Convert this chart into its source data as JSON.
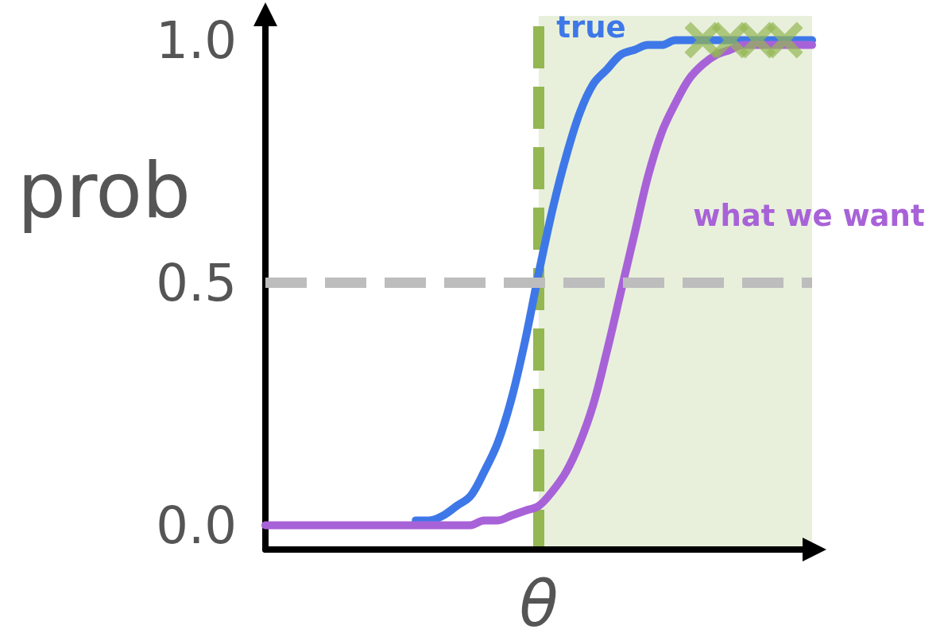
{
  "chart_data": {
    "type": "line",
    "xlabel": "θ",
    "ylabel": "prob",
    "categories": [
      null,
      null,
      null,
      null,
      null,
      null,
      null,
      null,
      null,
      null,
      null,
      null,
      null,
      null,
      null,
      null,
      null,
      null,
      null,
      null,
      null,
      null,
      null,
      null,
      null,
      null,
      null,
      null,
      null,
      null,
      null,
      null,
      null,
      null,
      null,
      null,
      null,
      null,
      null,
      null,
      null
    ],
    "series": [
      {
        "name": "true",
        "color": "#3e78e8",
        "values": [
          null,
          null,
          null,
          null,
          null,
          null,
          null,
          null,
          null,
          null,
          null,
          0.01,
          0.01,
          0.02,
          0.04,
          0.06,
          0.11,
          0.17,
          0.26,
          0.38,
          0.52,
          0.65,
          0.76,
          0.85,
          0.91,
          0.94,
          0.97,
          0.98,
          0.99,
          0.99,
          1,
          1,
          1,
          1,
          1,
          1,
          1,
          1,
          1,
          1,
          1
        ]
      },
      {
        "name": "what we want",
        "color": "#a862d8",
        "values": [
          0,
          0,
          0,
          0,
          0,
          0,
          0,
          0,
          0,
          0,
          0,
          0,
          0,
          0,
          0,
          0,
          0.01,
          0.01,
          0.02,
          0.03,
          0.04,
          0.07,
          0.11,
          0.17,
          0.25,
          0.36,
          0.48,
          0.6,
          0.72,
          0.81,
          0.87,
          0.92,
          0.95,
          0.97,
          0.98,
          0.99,
          0.99,
          0.99,
          0.99,
          0.99,
          0.99
        ]
      },
      {
        "type": "scatter",
        "color": "#94b752",
        "marker": "cross",
        "values": [
          null,
          null,
          null,
          null,
          null,
          null,
          null,
          null,
          null,
          null,
          null,
          null,
          null,
          null,
          null,
          null,
          null,
          null,
          null,
          null,
          null,
          null,
          null,
          null,
          null,
          null,
          null,
          null,
          null,
          null,
          null,
          null,
          1,
          null,
          1,
          null,
          1,
          null,
          1,
          null,
          null
        ]
      }
    ],
    "ylim": [
      -0.05,
      1.05
    ],
    "yticks": [
      {
        "value": 0,
        "label": "0.0"
      },
      {
        "value": 0.5,
        "label": "0.5"
      },
      {
        "value": 1,
        "label": "1.0"
      }
    ],
    "ref_lines": [
      {
        "axis": "y",
        "value": 0.5,
        "color": "#bdbdbd",
        "line_style": "dashed"
      }
    ],
    "tick_labels": "y",
    "line_style": "solid"
  }
}
